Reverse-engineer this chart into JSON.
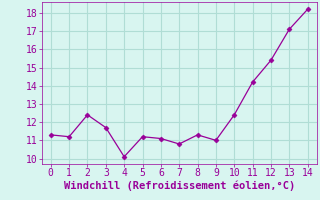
{
  "x": [
    0,
    1,
    2,
    3,
    4,
    5,
    6,
    7,
    8,
    9,
    10,
    11,
    12,
    13,
    14
  ],
  "y": [
    11.3,
    11.2,
    12.4,
    11.7,
    10.1,
    11.2,
    11.1,
    10.8,
    11.3,
    11.0,
    12.4,
    14.2,
    15.4,
    17.1,
    18.2
  ],
  "line_color": "#990099",
  "marker": "D",
  "marker_size": 2.5,
  "bg_color": "#d8f5f0",
  "grid_color": "#b0ddd5",
  "xlabel": "Windchill (Refroidissement éolien,°C)",
  "xlabel_color": "#990099",
  "xlabel_fontsize": 7.5,
  "tick_color": "#990099",
  "tick_fontsize": 7,
  "ylim": [
    9.7,
    18.6
  ],
  "xlim": [
    -0.5,
    14.5
  ],
  "yticks": [
    10,
    11,
    12,
    13,
    14,
    15,
    16,
    17,
    18
  ],
  "xticks": [
    0,
    1,
    2,
    3,
    4,
    5,
    6,
    7,
    8,
    9,
    10,
    11,
    12,
    13,
    14
  ]
}
